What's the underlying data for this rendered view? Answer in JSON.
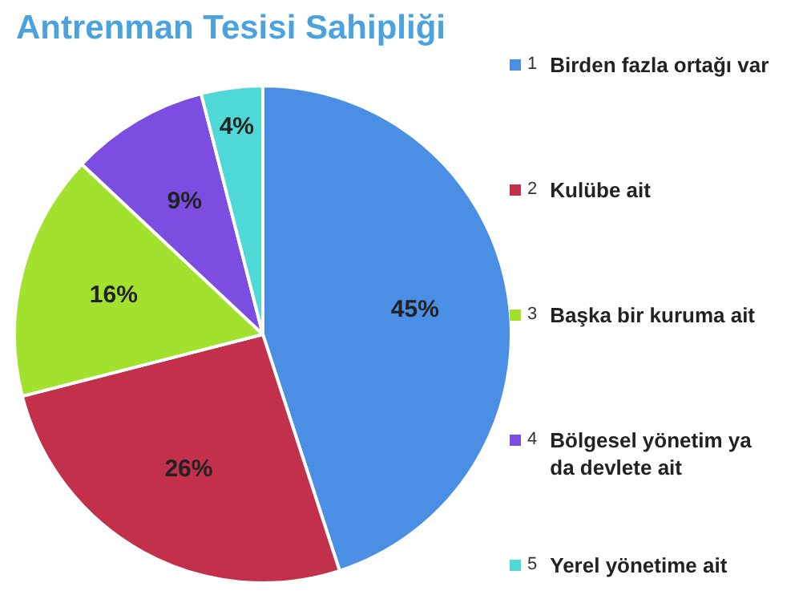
{
  "chart_data": {
    "type": "pie",
    "title": "Antrenman Tesisi Sahipliği",
    "categories": [
      "Birden fazla ortağı var",
      "Kulübe ait",
      "Başka bir kuruma ait",
      "Bölgesel yönetim ya da devlete ait",
      "Yerel yönetime ait"
    ],
    "values": [
      45,
      26,
      16,
      9,
      4
    ],
    "value_labels": [
      "45%",
      "26%",
      "16%",
      "9%",
      "4%"
    ],
    "colors": [
      "#4a8fe3",
      "#c3304c",
      "#a3e12f",
      "#7b4de0",
      "#4fd9d6"
    ],
    "annotations": [
      "1",
      "2",
      "3",
      "4",
      "5"
    ],
    "legend": "right"
  }
}
